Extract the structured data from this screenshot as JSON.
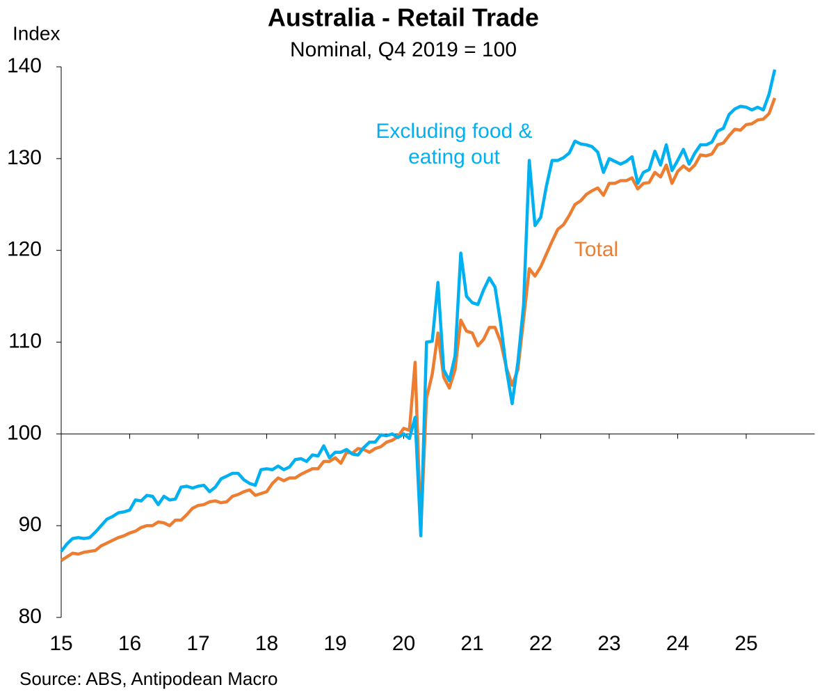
{
  "chart_data": {
    "type": "line",
    "title": "Australia - Retail Trade",
    "subtitle": "Nominal, Q4 2019 = 100",
    "y_label": "Index",
    "source": "Source: ABS, Antipodean Macro",
    "x": [
      180,
      181,
      182,
      183,
      184,
      185,
      186,
      187,
      188,
      189,
      190,
      191,
      192,
      193,
      194,
      195,
      196,
      197,
      198,
      199,
      200,
      201,
      202,
      203,
      204,
      205,
      206,
      207,
      208,
      209,
      210,
      211,
      212,
      213,
      214,
      215,
      216,
      217,
      218,
      219,
      220,
      221,
      222,
      223,
      224,
      225,
      226,
      227,
      228,
      229,
      230,
      231,
      232,
      233,
      234,
      235,
      236,
      237,
      238,
      239,
      240,
      241,
      242,
      243,
      244,
      245,
      246,
      247,
      248,
      249,
      250,
      251,
      252,
      253,
      254,
      255,
      256,
      257,
      258,
      259,
      260,
      261,
      262,
      263,
      264,
      265,
      266,
      267,
      268,
      269,
      270,
      271,
      272,
      273,
      274,
      275,
      276,
      277,
      278,
      279,
      280,
      281,
      282,
      283,
      284,
      285,
      286,
      287,
      288,
      289,
      290,
      291,
      292,
      293,
      294,
      295,
      296,
      297,
      298,
      299,
      300,
      301,
      302,
      303,
      304,
      305
    ],
    "xlim": [
      180,
      312
    ],
    "xticks": [
      {
        "value": 180,
        "label": "15"
      },
      {
        "value": 192,
        "label": "16"
      },
      {
        "value": 204,
        "label": "17"
      },
      {
        "value": 216,
        "label": "18"
      },
      {
        "value": 228,
        "label": "19"
      },
      {
        "value": 240,
        "label": "20"
      },
      {
        "value": 252,
        "label": "21"
      },
      {
        "value": 264,
        "label": "22"
      },
      {
        "value": 276,
        "label": "23"
      },
      {
        "value": 288,
        "label": "24"
      },
      {
        "value": 300,
        "label": "25"
      }
    ],
    "ylim": [
      80,
      140
    ],
    "yticks": [
      80,
      90,
      100,
      110,
      120,
      130,
      140
    ],
    "x_axis_at": 100,
    "series": [
      {
        "name": "Excluding food & eating out",
        "color": "#00b0f0",
        "values": [
          87.2,
          88.0,
          88.6,
          88.7,
          88.6,
          88.7,
          89.3,
          90.0,
          90.7,
          91.0,
          91.4,
          91.5,
          91.7,
          92.8,
          92.7,
          93.3,
          93.2,
          92.3,
          93.2,
          92.8,
          92.9,
          94.2,
          94.3,
          94.1,
          94.3,
          94.4,
          93.7,
          94.2,
          95.1,
          95.4,
          95.7,
          95.7,
          95.0,
          94.6,
          94.4,
          96.1,
          96.2,
          96.1,
          96.5,
          96.1,
          96.4,
          97.2,
          97.3,
          97.0,
          97.7,
          97.6,
          98.7,
          97.4,
          98.0,
          98.0,
          98.3,
          97.8,
          97.7,
          98.5,
          99.1,
          99.1,
          99.9,
          99.8,
          100.0,
          99.6,
          100.0,
          99.5,
          101.8,
          88.9,
          110.0,
          110.1,
          116.5,
          107.0,
          105.8,
          108.5,
          119.7,
          115.0,
          114.3,
          114.1,
          115.7,
          117.0,
          116.0,
          112.0,
          107.0,
          103.3,
          107.8,
          114.0,
          129.8,
          122.7,
          123.6,
          127.0,
          129.8,
          129.8,
          130.1,
          130.6,
          131.9,
          131.6,
          131.5,
          131.3,
          130.7,
          128.5,
          130.0,
          129.7,
          129.4,
          129.7,
          130.2,
          127.3,
          128.5,
          128.8,
          130.8,
          129.3,
          131.5,
          128.7,
          129.8,
          131.0,
          129.4,
          130.6,
          131.5,
          131.5,
          131.8,
          133.0,
          133.3,
          134.8,
          135.4,
          135.7,
          135.6,
          135.3,
          135.6,
          135.3,
          137.0,
          139.7
        ]
      },
      {
        "name": "Total",
        "color": "#ed7d31",
        "values": [
          86.2,
          86.6,
          87.0,
          86.9,
          87.1,
          87.2,
          87.3,
          87.8,
          88.1,
          88.4,
          88.7,
          88.9,
          89.2,
          89.4,
          89.8,
          90.0,
          90.0,
          90.4,
          90.3,
          90.0,
          90.6,
          90.6,
          91.2,
          91.9,
          92.2,
          92.3,
          92.6,
          92.7,
          92.5,
          92.6,
          93.2,
          93.4,
          93.7,
          93.9,
          93.3,
          93.5,
          93.7,
          94.6,
          95.2,
          94.9,
          95.2,
          95.2,
          95.6,
          95.9,
          96.2,
          96.2,
          97.0,
          97.0,
          97.4,
          96.8,
          98.0,
          97.9,
          98.4,
          98.3,
          98.0,
          98.4,
          98.6,
          99.1,
          99.3,
          99.7,
          100.6,
          100.4,
          107.8,
          89.5,
          103.9,
          106.5,
          111.0,
          106.2,
          105.0,
          107.0,
          112.4,
          111.2,
          111.0,
          109.6,
          110.3,
          111.6,
          111.6,
          110.0,
          107.2,
          105.3,
          107.0,
          112.5,
          118.0,
          117.2,
          118.2,
          119.6,
          121.0,
          122.3,
          122.8,
          123.8,
          125.0,
          125.4,
          126.1,
          126.5,
          126.8,
          126.0,
          127.3,
          127.3,
          127.6,
          127.6,
          127.9,
          126.7,
          127.3,
          127.4,
          128.5,
          128.0,
          129.3,
          127.3,
          128.6,
          129.2,
          128.7,
          129.3,
          130.4,
          130.3,
          130.5,
          131.5,
          131.7,
          132.5,
          133.2,
          133.1,
          133.7,
          133.8,
          134.2,
          134.3,
          134.9,
          136.6
        ]
      }
    ]
  }
}
